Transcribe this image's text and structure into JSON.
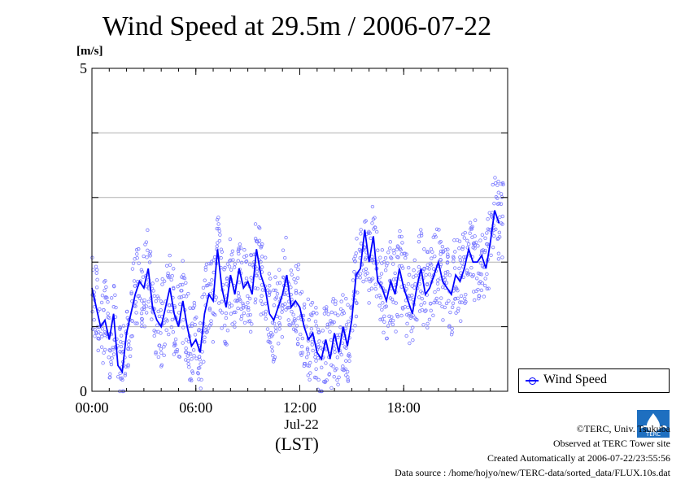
{
  "title": "Wind Speed at 29.5m / 2006-07-22",
  "chart_data": {
    "type": "line",
    "title": "Wind Speed at 29.5m / 2006-07-22",
    "ylabel": "[m/s]",
    "xlabel": "(LST)",
    "x_unit": "hour",
    "xlim": [
      0,
      24
    ],
    "ylim": [
      0,
      5
    ],
    "yticks": [
      "0",
      "5"
    ],
    "xticks": [
      {
        "x": 0,
        "label": "00:00"
      },
      {
        "x": 6,
        "label": "06:00"
      },
      {
        "x": 12,
        "label": "12:00"
      },
      {
        "x": 18,
        "label": "18:00"
      }
    ],
    "x_sublabel": "Jul-22",
    "y_gridlines": [
      1,
      2,
      3,
      4
    ],
    "legend_position": "bottom-right",
    "series": [
      {
        "name": "Wind Speed",
        "color": "#0000ff",
        "style": "line with scattered 10s samples",
        "x": [
          0,
          0.25,
          0.5,
          0.75,
          1,
          1.25,
          1.5,
          1.75,
          2,
          2.25,
          2.5,
          2.75,
          3,
          3.25,
          3.5,
          3.75,
          4,
          4.25,
          4.5,
          4.75,
          5,
          5.25,
          5.5,
          5.75,
          6,
          6.25,
          6.5,
          6.75,
          7,
          7.25,
          7.5,
          7.75,
          8,
          8.25,
          8.5,
          8.75,
          9,
          9.25,
          9.5,
          9.75,
          10,
          10.25,
          10.5,
          10.75,
          11,
          11.25,
          11.5,
          11.75,
          12,
          12.25,
          12.5,
          12.75,
          13,
          13.25,
          13.5,
          13.75,
          14,
          14.25,
          14.5,
          14.75,
          15,
          15.25,
          15.5,
          15.75,
          16,
          16.25,
          16.5,
          16.75,
          17,
          17.25,
          17.5,
          17.75,
          18,
          18.25,
          18.5,
          18.75,
          19,
          19.25,
          19.5,
          19.75,
          20,
          20.25,
          20.5,
          20.75,
          21,
          21.25,
          21.5,
          21.75,
          22,
          22.25,
          22.5,
          22.75,
          23,
          23.25,
          23.5
        ],
        "values": [
          1.6,
          1.3,
          1.0,
          1.1,
          0.8,
          1.2,
          0.4,
          0.3,
          0.9,
          1.2,
          1.5,
          1.7,
          1.6,
          1.9,
          1.3,
          1.1,
          1.0,
          1.3,
          1.6,
          1.2,
          1.0,
          1.4,
          1.0,
          0.7,
          0.8,
          0.6,
          1.2,
          1.5,
          1.4,
          2.2,
          1.6,
          1.3,
          1.8,
          1.5,
          1.9,
          1.6,
          1.7,
          1.5,
          2.2,
          1.8,
          1.6,
          1.2,
          1.1,
          1.3,
          1.5,
          1.8,
          1.3,
          1.4,
          1.3,
          1.0,
          0.8,
          0.9,
          0.6,
          0.5,
          0.8,
          0.5,
          0.9,
          0.6,
          1.0,
          0.7,
          1.1,
          1.8,
          1.9,
          2.5,
          2.0,
          2.4,
          1.7,
          1.6,
          1.4,
          1.7,
          1.5,
          1.9,
          1.6,
          1.4,
          1.2,
          1.6,
          1.9,
          1.5,
          1.6,
          1.8,
          2.0,
          1.7,
          1.6,
          1.5,
          1.8,
          1.7,
          1.9,
          2.2,
          2.0,
          2.0,
          2.1,
          1.9,
          2.3,
          2.8,
          2.6
        ]
      }
    ]
  },
  "legend": {
    "label": "Wind Speed"
  },
  "credits": {
    "copyright": "©TERC, Univ. Tsukuba",
    "site": "Observed at TERC Tower site",
    "created": "Created Automatically at 2006-07-22/23:55:56",
    "source": "Data source : /home/hojyo/new/TERC-data/sorted_data/FLUX.10s.dat"
  },
  "logo_text": "TERC"
}
